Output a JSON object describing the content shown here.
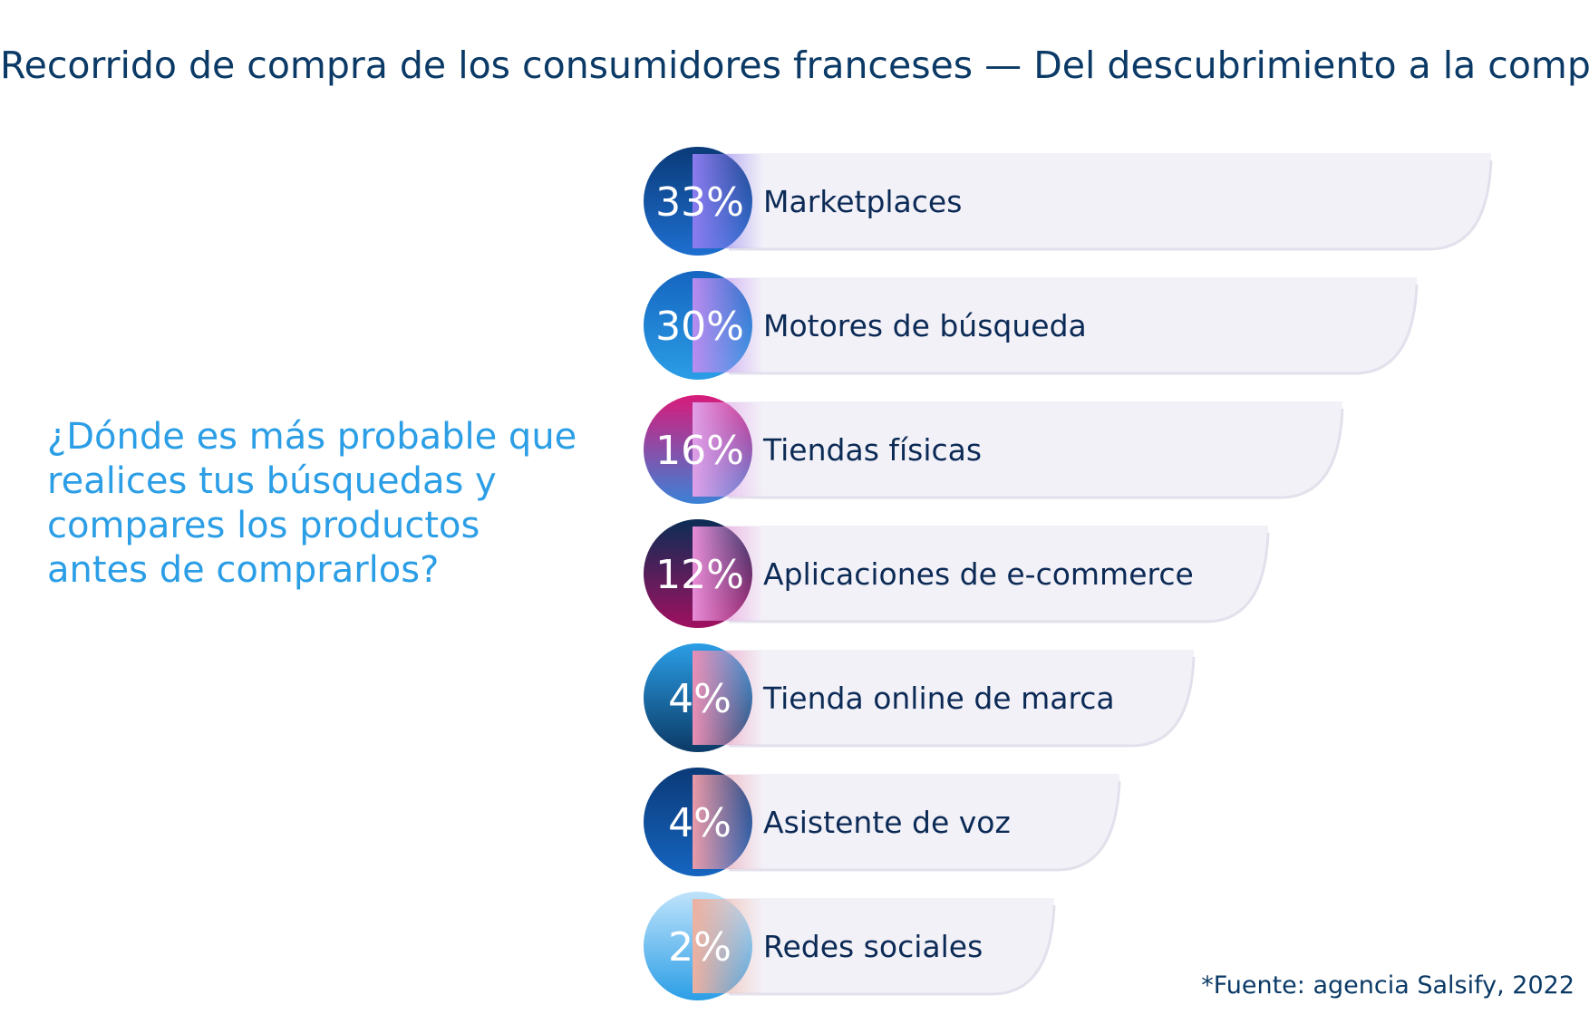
{
  "title": "Recorrido de compra de los consumidores franceses — Del descubrimiento a la compra*",
  "question": "¿Dónde es más probable que realices tus búsquedas y compares los productos antes de comprarlos?",
  "source": "*Fuente: agencia Salsify, 2022",
  "chart_data": {
    "type": "bar",
    "orientation": "horizontal",
    "categories": [
      "Marketplaces",
      "Motores de búsqueda",
      "Tiendas físicas",
      "Aplicaciones de e-commerce",
      "Tienda online de marca",
      "Asistente de voz",
      "Redes sociales"
    ],
    "values": [
      33,
      30,
      16,
      12,
      4,
      4,
      2
    ],
    "value_labels": [
      "33%",
      "30%",
      "16%",
      "12%",
      "4%",
      "4%",
      "2%"
    ],
    "unit": "%",
    "circle_colors": [
      [
        "#0a3a78",
        "#1e6fd0"
      ],
      [
        "#1565c0",
        "#2b9ee6"
      ],
      [
        "#d81b7a",
        "#3b82d6"
      ],
      [
        "#0b2d55",
        "#a01060"
      ],
      [
        "#2b9ee6",
        "#0b3a66"
      ],
      [
        "#0b3a78",
        "#1565c0"
      ],
      [
        "#bfe3fb",
        "#2b9ee6"
      ]
    ],
    "bar_accent_colors": [
      "#8c7cf0",
      "#b98cf0",
      "#e0a0e8",
      "#e78cd6",
      "#ea8fb5",
      "#ea9aa8",
      "#eeb0a0"
    ],
    "bar_fill": "#f3f1f8",
    "title_color": "#0b3a66",
    "question_color": "#2b9ee6"
  }
}
